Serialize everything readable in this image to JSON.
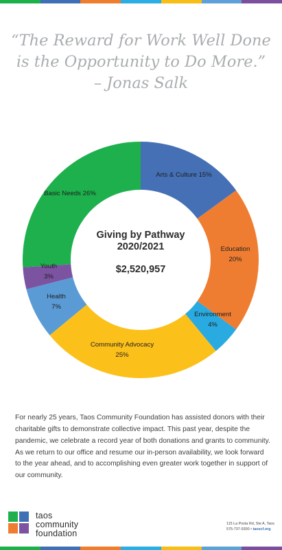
{
  "stripe_colors": [
    "#1cb04b",
    "#3f6fb4",
    "#ee7d2d",
    "#2aaee3",
    "#f7be16",
    "#5ea0d8",
    "#7b4f9e"
  ],
  "quote": {
    "line1": "“The Reward for Work Well Done",
    "line2": "is the Opportunity to Do More.”",
    "line3": "– Jonas Salk"
  },
  "chart_data": {
    "type": "pie",
    "style": "donut",
    "title": "Giving by Pathway",
    "subtitle": "2020/2021",
    "total": "$2,520,957",
    "slices": [
      {
        "name": "Arts & Culture",
        "value": 15,
        "label": "Arts & Culture 15%",
        "color": "#4570b6"
      },
      {
        "name": "Education",
        "value": 20,
        "label": "Education 20%",
        "color": "#ef7d31"
      },
      {
        "name": "Environment",
        "value": 4,
        "label": "Environment 4%",
        "color": "#29aae1"
      },
      {
        "name": "Community Advocacy",
        "value": 25,
        "label": "Community Advocacy 25%",
        "color": "#fcc01a"
      },
      {
        "name": "Health",
        "value": 7,
        "label": "Health 7%",
        "color": "#5b9bd5"
      },
      {
        "name": "Youth",
        "value": 3,
        "label": "Youth 3%",
        "color": "#7c53a0"
      },
      {
        "name": "Basic Needs",
        "value": 26,
        "label": "Basic Needs 26%",
        "color": "#1db04c"
      }
    ]
  },
  "paragraph": "For nearly 25 years, Taos Community Foundation has assisted donors with their charitable gifts to demonstrate collective impact. This past year, despite the pandemic, we celebrate a record year of both donations and grants to community. As we return to our office and resume our in-person availability, we look forward to the year ahead, and to accomplishing even greater work together in support of our community.",
  "logo": {
    "line1": "taos",
    "line2": "community",
    "line3": "foundation",
    "colors": [
      "#1db04c",
      "#3f6fb4",
      "#ef7d31",
      "#7c53a0"
    ]
  },
  "contact": {
    "address": "115 La Posta Rd, Ste A, Taos",
    "phone": "575-737-9300",
    "separator": "•",
    "site": "taoscf.org"
  }
}
